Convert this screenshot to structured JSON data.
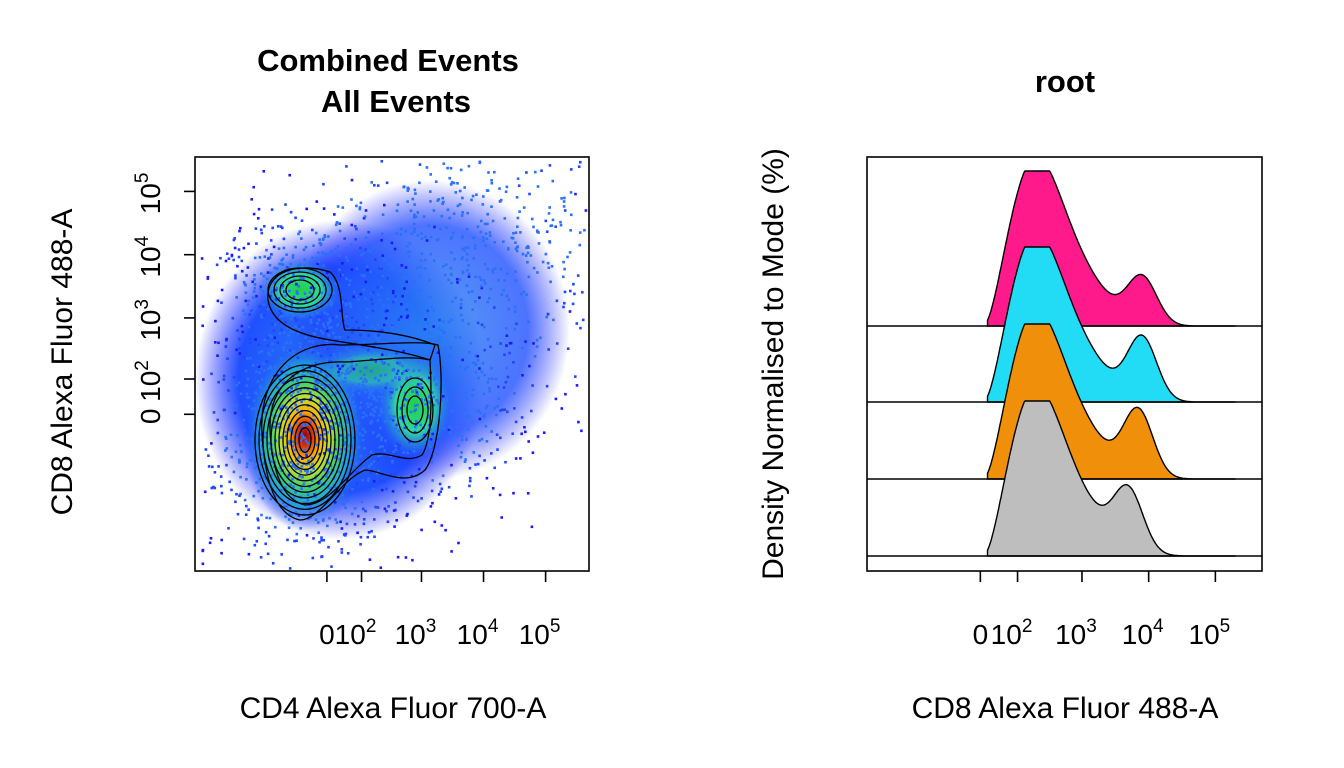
{
  "chart_data": [
    {
      "type": "scatter",
      "subtype": "density-dot-plot-with-contours",
      "title": [
        "Combined Events",
        "All Events"
      ],
      "xlabel": "CD4 Alexa Fluor 700-A",
      "ylabel": "CD8 Alexa Fluor 488-A",
      "x_scale": "biexponential",
      "y_scale": "biexponential",
      "x_ticks": [
        {
          "base": "0",
          "exp": ""
        },
        {
          "base": "10",
          "exp": "2"
        },
        {
          "base": "10",
          "exp": "3"
        },
        {
          "base": "10",
          "exp": "4"
        },
        {
          "base": "10",
          "exp": "5"
        }
      ],
      "y_ticks": [
        {
          "base": "0",
          "exp": ""
        },
        {
          "base": "10",
          "exp": "2"
        },
        {
          "base": "10",
          "exp": "3"
        },
        {
          "base": "10",
          "exp": "4"
        },
        {
          "base": "10",
          "exp": "5"
        }
      ],
      "populations": [
        {
          "x": 0,
          "y": 50,
          "density": "high"
        },
        {
          "x": 2500,
          "y": 400,
          "density": "medium"
        },
        {
          "x": 0,
          "y": 8000,
          "density": "medium"
        }
      ],
      "colors": {
        "low": "#1a1aff",
        "mid": "#20d0a0",
        "high": "#ffd200",
        "peak": "#b00000"
      },
      "grid": false,
      "legend": "none"
    },
    {
      "type": "area",
      "subtype": "ridgeline-histogram",
      "title": "root",
      "xlabel": "CD8 Alexa Fluor 488-A",
      "ylabel": "Density Normalised to Mode (%)",
      "x_scale": "biexponential",
      "x_ticks": [
        {
          "base": "0",
          "exp": ""
        },
        {
          "base": "10",
          "exp": "2"
        },
        {
          "base": "10",
          "exp": "3"
        },
        {
          "base": "10",
          "exp": "4"
        },
        {
          "base": "10",
          "exp": "5"
        }
      ],
      "series": [
        {
          "color": "#ff1a8c",
          "peaks": [
            {
              "x": 180,
              "y": 100
            },
            {
              "x": 8000,
              "y": 30
            }
          ]
        },
        {
          "color": "#22dcf5",
          "peaks": [
            {
              "x": 180,
              "y": 100
            },
            {
              "x": 8000,
              "y": 40
            }
          ]
        },
        {
          "color": "#f0900a",
          "peaks": [
            {
              "x": 180,
              "y": 100
            },
            {
              "x": 7000,
              "y": 42
            }
          ]
        },
        {
          "color": "#bebebe",
          "peaks": [
            {
              "x": 180,
              "y": 100
            },
            {
              "x": 5000,
              "y": 38
            }
          ]
        }
      ],
      "grid": false,
      "legend": "none"
    }
  ]
}
